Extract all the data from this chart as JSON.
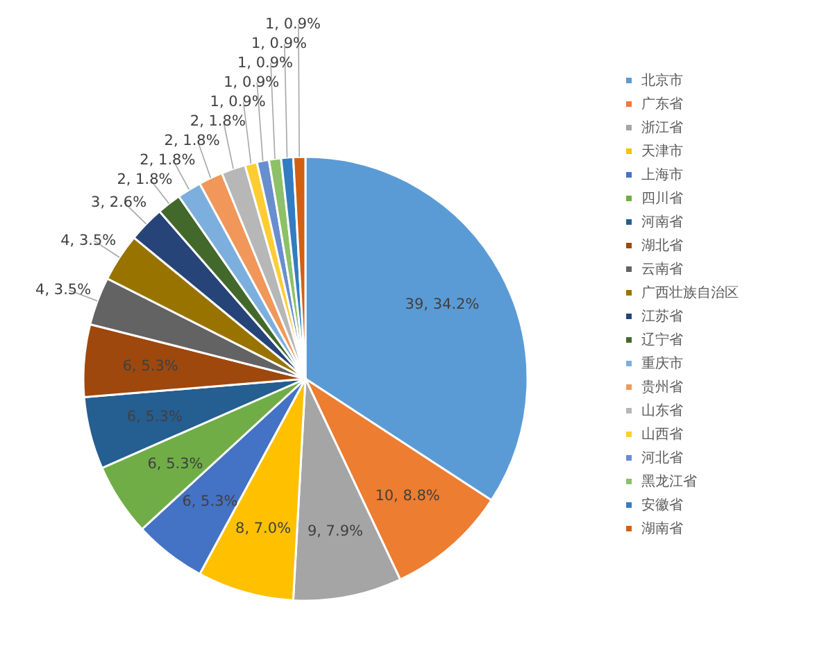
{
  "chart_data": {
    "type": "pie",
    "categories": [
      "北京市",
      "广东省",
      "浙江省",
      "天津市",
      "上海市",
      "四川省",
      "河南省",
      "湖北省",
      "云南省",
      "广西壮族自治区",
      "江苏省",
      "辽宁省",
      "重庆市",
      "贵州省",
      "山东省",
      "山西省",
      "河北省",
      "黑龙江省",
      "安徽省",
      "湖南省"
    ],
    "values": [
      39,
      10,
      9,
      8,
      6,
      6,
      6,
      6,
      4,
      4,
      3,
      2,
      2,
      2,
      2,
      1,
      1,
      1,
      1,
      1
    ],
    "value_labels": [
      "39, 34.2%",
      "10, 8.8%",
      "9, 7.9%",
      "8, 7.0%",
      "6, 5.3%",
      "6, 5.3%",
      "6, 5.3%",
      "6, 5.3%",
      "4, 3.5%",
      "4, 3.5%",
      "3, 2.6%",
      "2, 1.8%",
      "2, 1.8%",
      "2, 1.8%",
      "2, 1.8%",
      "1, 0.9%",
      "1, 0.9%",
      "1, 0.9%",
      "1, 0.9%",
      "1, 0.9%"
    ],
    "colors": [
      "#5b9bd5",
      "#ed7d31",
      "#a5a5a5",
      "#ffc000",
      "#4472c4",
      "#70ad47",
      "#255e91",
      "#9e480e",
      "#636363",
      "#997300",
      "#264478",
      "#43682b",
      "#7cafdd",
      "#f1975a",
      "#b7b7b7",
      "#ffcd33",
      "#698ed0",
      "#8cc168",
      "#327dc2",
      "#d26012"
    ],
    "legend": "right"
  }
}
